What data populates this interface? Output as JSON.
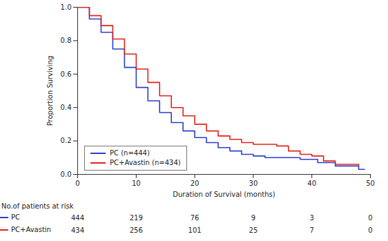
{
  "chart_data": {
    "type": "step",
    "x_label": "Duration of Survival (months)",
    "y_label": "Proportion Surviving",
    "xlim": [
      0,
      50
    ],
    "ylim": [
      0,
      1
    ],
    "xticks": [
      0,
      10,
      20,
      30,
      40,
      50
    ],
    "yticks": [
      {
        "value": 0,
        "label": "0.0"
      },
      {
        "value": 0.2,
        "label": "0.2"
      },
      {
        "value": 0.4,
        "label": "0.4"
      },
      {
        "value": 0.6,
        "label": "0.6"
      },
      {
        "value": 0.8,
        "label": "0.8"
      },
      {
        "value": 1,
        "label": "1.0"
      }
    ],
    "grid": false,
    "legend": "lower left",
    "series": [
      {
        "name": "PC (n=444)",
        "color": "#2a3fd1",
        "x": [
          0,
          2,
          4,
          6,
          8,
          10,
          12,
          14,
          16,
          18,
          20,
          22,
          24,
          26,
          28,
          30,
          32,
          35,
          38,
          40,
          41,
          44,
          48,
          49
        ],
        "values": [
          1,
          0.93,
          0.85,
          0.75,
          0.64,
          0.52,
          0.44,
          0.37,
          0.31,
          0.26,
          0.22,
          0.19,
          0.16,
          0.14,
          0.12,
          0.11,
          0.1,
          0.1,
          0.09,
          0.09,
          0.07,
          0.05,
          0.03,
          0.03
        ]
      },
      {
        "name": "PC+Avastin (n=434)",
        "color": "#e2231a",
        "x": [
          0,
          2,
          4,
          6,
          8,
          10,
          12,
          14,
          16,
          18,
          20,
          22,
          24,
          26,
          28,
          30,
          32,
          34,
          36,
          38,
          40,
          42,
          44,
          48
        ],
        "values": [
          1,
          0.95,
          0.89,
          0.81,
          0.72,
          0.63,
          0.55,
          0.47,
          0.4,
          0.35,
          0.3,
          0.26,
          0.23,
          0.21,
          0.19,
          0.18,
          0.18,
          0.17,
          0.14,
          0.12,
          0.11,
          0.08,
          0.06,
          0.05
        ]
      }
    ],
    "at_risk": {
      "title": "No.of patients at risk",
      "times": [
        0,
        10,
        20,
        30,
        40,
        50
      ],
      "rows": [
        {
          "name": "PC",
          "color": "#2a3fd1",
          "values": [
            444,
            219,
            76,
            9,
            3,
            0
          ]
        },
        {
          "name": "PC+Avastin",
          "color": "#e2231a",
          "values": [
            434,
            256,
            101,
            25,
            7,
            0
          ]
        }
      ]
    }
  }
}
